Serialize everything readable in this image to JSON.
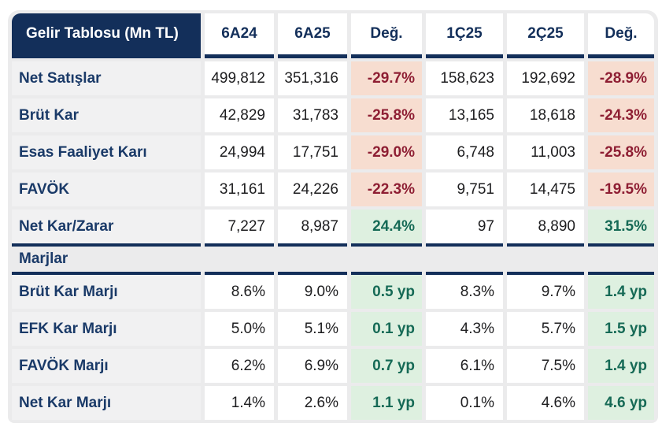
{
  "table": {
    "title": "Gelir Tablosu (Mn TL)",
    "columns": [
      "6A24",
      "6A25",
      "Değ.",
      "1Ç25",
      "2Ç25",
      "Değ."
    ],
    "rows": [
      {
        "label": "Net Satışlar",
        "cells": [
          {
            "t": "499,812",
            "k": "num"
          },
          {
            "t": "351,316",
            "k": "num"
          },
          {
            "t": "-29.7%",
            "k": "neg"
          },
          {
            "t": "158,623",
            "k": "num"
          },
          {
            "t": "192,692",
            "k": "num"
          },
          {
            "t": "-28.9%",
            "k": "neg"
          }
        ]
      },
      {
        "label": "Brüt Kar",
        "cells": [
          {
            "t": "42,829",
            "k": "num"
          },
          {
            "t": "31,783",
            "k": "num"
          },
          {
            "t": "-25.8%",
            "k": "neg"
          },
          {
            "t": "13,165",
            "k": "num"
          },
          {
            "t": "18,618",
            "k": "num"
          },
          {
            "t": "-24.3%",
            "k": "neg"
          }
        ]
      },
      {
        "label": "Esas Faaliyet Karı",
        "cells": [
          {
            "t": "24,994",
            "k": "num"
          },
          {
            "t": "17,751",
            "k": "num"
          },
          {
            "t": "-29.0%",
            "k": "neg"
          },
          {
            "t": "6,748",
            "k": "num"
          },
          {
            "t": "11,003",
            "k": "num"
          },
          {
            "t": "-25.8%",
            "k": "neg"
          }
        ]
      },
      {
        "label": "FAVÖK",
        "cells": [
          {
            "t": "31,161",
            "k": "num"
          },
          {
            "t": "24,226",
            "k": "num"
          },
          {
            "t": "-22.3%",
            "k": "neg"
          },
          {
            "t": "9,751",
            "k": "num"
          },
          {
            "t": "14,475",
            "k": "num"
          },
          {
            "t": "-19.5%",
            "k": "neg"
          }
        ]
      },
      {
        "label": "Net Kar/Zarar",
        "cells": [
          {
            "t": "7,227",
            "k": "num"
          },
          {
            "t": "8,987",
            "k": "num"
          },
          {
            "t": "24.4%",
            "k": "pos"
          },
          {
            "t": "97",
            "k": "num"
          },
          {
            "t": "8,890",
            "k": "num"
          },
          {
            "t": "31.5%",
            "k": "pos"
          }
        ]
      }
    ],
    "section_header": "Marjlar",
    "margin_rows": [
      {
        "label": "Brüt Kar Marjı",
        "cells": [
          {
            "t": "8.6%",
            "k": "num"
          },
          {
            "t": "9.0%",
            "k": "num"
          },
          {
            "t": "0.5 yp",
            "k": "pos"
          },
          {
            "t": "8.3%",
            "k": "num"
          },
          {
            "t": "9.7%",
            "k": "num"
          },
          {
            "t": "1.4 yp",
            "k": "pos"
          }
        ]
      },
      {
        "label": "EFK Kar Marjı",
        "cells": [
          {
            "t": "5.0%",
            "k": "num"
          },
          {
            "t": "5.1%",
            "k": "num"
          },
          {
            "t": "0.1 yp",
            "k": "pos"
          },
          {
            "t": "4.3%",
            "k": "num"
          },
          {
            "t": "5.7%",
            "k": "num"
          },
          {
            "t": "1.5 yp",
            "k": "pos"
          }
        ]
      },
      {
        "label": "FAVÖK Marjı",
        "cells": [
          {
            "t": "6.2%",
            "k": "num"
          },
          {
            "t": "6.9%",
            "k": "num"
          },
          {
            "t": "0.7 yp",
            "k": "pos"
          },
          {
            "t": "6.1%",
            "k": "num"
          },
          {
            "t": "7.5%",
            "k": "num"
          },
          {
            "t": "1.4 yp",
            "k": "pos"
          }
        ]
      },
      {
        "label": "Net Kar Marjı",
        "cells": [
          {
            "t": "1.4%",
            "k": "num"
          },
          {
            "t": "2.6%",
            "k": "num"
          },
          {
            "t": "1.1 yp",
            "k": "pos"
          },
          {
            "t": "0.1%",
            "k": "num"
          },
          {
            "t": "4.6%",
            "k": "num"
          },
          {
            "t": "4.6 yp",
            "k": "pos"
          }
        ]
      }
    ]
  },
  "colors": {
    "navy": "#132f5a",
    "label_text": "#1a3a68",
    "negative_bg": "#f7ddd0",
    "negative_text": "#8e1e33",
    "positive_bg": "#def0e0",
    "positive_text": "#166a56",
    "label_bg": "#f1f1f2",
    "frame_bg": "#ebebec"
  },
  "chart_data": {
    "type": "table",
    "title": "Gelir Tablosu (Mn TL)",
    "columns": [
      "6A24",
      "6A25",
      "Değ.",
      "1Ç25",
      "2Ç25",
      "Değ."
    ],
    "sections": [
      {
        "name": "Gelir Tablosu",
        "rows": [
          [
            "Net Satışlar",
            499812,
            351316,
            "-29.7%",
            158623,
            192692,
            "-28.9%"
          ],
          [
            "Brüt Kar",
            42829,
            31783,
            "-25.8%",
            13165,
            18618,
            "-24.3%"
          ],
          [
            "Esas Faaliyet Karı",
            24994,
            17751,
            "-29.0%",
            6748,
            11003,
            "-25.8%"
          ],
          [
            "FAVÖK",
            31161,
            24226,
            "-22.3%",
            9751,
            14475,
            "-19.5%"
          ],
          [
            "Net Kar/Zarar",
            7227,
            8987,
            "24.4%",
            97,
            8890,
            "31.5%"
          ]
        ]
      },
      {
        "name": "Marjlar",
        "rows": [
          [
            "Brüt Kar Marjı",
            "8.6%",
            "9.0%",
            "0.5 yp",
            "8.3%",
            "9.7%",
            "1.4 yp"
          ],
          [
            "EFK Kar Marjı",
            "5.0%",
            "5.1%",
            "0.1 yp",
            "4.3%",
            "5.7%",
            "1.5 yp"
          ],
          [
            "FAVÖK Marjı",
            "6.2%",
            "6.9%",
            "0.7 yp",
            "6.1%",
            "7.5%",
            "1.4 yp"
          ],
          [
            "Net Kar Marjı",
            "1.4%",
            "2.6%",
            "1.1 yp",
            "0.1%",
            "4.6%",
            "4.6 yp"
          ]
        ]
      }
    ]
  }
}
